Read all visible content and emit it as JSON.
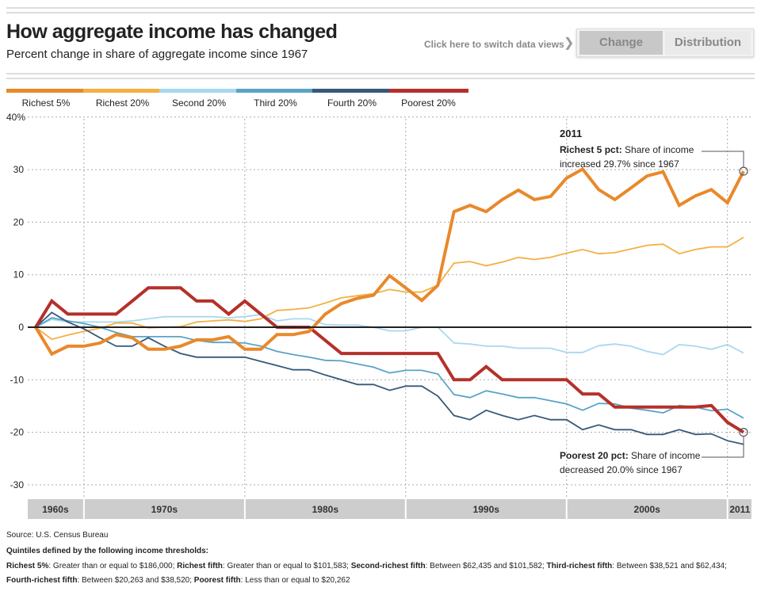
{
  "header": {
    "title": "How aggregate income has changed",
    "subtitle": "Percent change in share of aggregate income since 1967",
    "switch_hint": "Click here to switch data views",
    "buttons": [
      {
        "label": "Change",
        "active": true
      },
      {
        "label": "Distribution",
        "active": false
      }
    ]
  },
  "chart_data": {
    "type": "line",
    "title": "How aggregate income has changed",
    "subtitle": "Percent change in share of aggregate income since 1967",
    "ylim": [
      -33,
      40
    ],
    "yticks": [
      {
        "v": 40,
        "label": "40%"
      },
      {
        "v": 30,
        "label": "30"
      },
      {
        "v": 20,
        "label": "20"
      },
      {
        "v": 10,
        "label": "10"
      },
      {
        "v": 0,
        "label": "0"
      },
      {
        "v": -10,
        "label": "-10"
      },
      {
        "v": -20,
        "label": "-20"
      },
      {
        "v": -30,
        "label": "-30"
      }
    ],
    "grid": true,
    "legend_placement": "top",
    "x_start": 1967,
    "x_end": 2011,
    "decades": [
      {
        "label": "1960s",
        "from": 1967,
        "to": 1970
      },
      {
        "label": "1970s",
        "from": 1970,
        "to": 1980
      },
      {
        "label": "1980s",
        "from": 1980,
        "to": 1990
      },
      {
        "label": "1990s",
        "from": 1990,
        "to": 2000
      },
      {
        "label": "2000s",
        "from": 2000,
        "to": 2010
      },
      {
        "label": "2011",
        "from": 2010,
        "to": 2011
      }
    ],
    "series": [
      {
        "name": "Richest 5%",
        "color": "#e8892b",
        "width": 4,
        "values": [
          0,
          -5.1,
          -3.6,
          -3.6,
          -3,
          -1.4,
          -2,
          -4.2,
          -4.2,
          -3.6,
          -2.4,
          -2.4,
          -1.8,
          -4.2,
          -4.2,
          -1.4,
          -1.4,
          -0.8,
          2.5,
          4.5,
          5.5,
          6.1,
          9.8,
          7.5,
          5.1,
          8,
          22,
          23.2,
          22,
          24.3,
          26.1,
          24.3,
          24.9,
          28.4,
          30.1,
          26.2,
          24.3,
          26.5,
          28.8,
          29.6,
          23.2,
          25,
          26.2,
          23.7,
          29.7
        ]
      },
      {
        "name": "Richest 20%",
        "color": "#f4b043",
        "width": 1.8,
        "values": [
          0,
          -2.3,
          -1.5,
          -0.8,
          -0.2,
          0.8,
          0.8,
          -0.1,
          0,
          0.1,
          1,
          1.2,
          1.4,
          1.1,
          1.6,
          3.2,
          3.4,
          3.7,
          4.6,
          5.6,
          6,
          6.4,
          7.2,
          6.7,
          6.7,
          8,
          12.2,
          12.5,
          11.7,
          12.4,
          13.3,
          12.9,
          13.3,
          14.1,
          14.8,
          14,
          14.2,
          14.9,
          15.6,
          15.8,
          14,
          14.8,
          15.3,
          15.3,
          17.1
        ]
      },
      {
        "name": "Second 20%",
        "color": "#a8d8ef",
        "width": 1.8,
        "values": [
          0,
          1.5,
          1,
          1,
          1,
          1,
          1.2,
          1.6,
          2,
          2,
          2,
          2,
          1.8,
          2,
          2.4,
          1.2,
          1.6,
          1.6,
          0.5,
          0.4,
          0.4,
          0,
          -0.7,
          -0.7,
          0,
          0,
          -3,
          -3.2,
          -3.6,
          -3.6,
          -4,
          -4,
          -4,
          -4.8,
          -4.8,
          -3.5,
          -3.2,
          -3.6,
          -4.6,
          -5.2,
          -3.3,
          -3.6,
          -4.2,
          -3.3,
          -4.9
        ]
      },
      {
        "name": "Third 20%",
        "color": "#5ba3c7",
        "width": 1.8,
        "values": [
          0,
          1.8,
          1.2,
          0.7,
          0,
          -1,
          -1.8,
          -1.8,
          -1.8,
          -1.8,
          -2.5,
          -2.9,
          -2.9,
          -3,
          -3.6,
          -4.6,
          -5.2,
          -5.7,
          -6.3,
          -6.4,
          -7,
          -7.6,
          -8.7,
          -8.2,
          -8.2,
          -8.9,
          -12.8,
          -13.4,
          -12.1,
          -12.7,
          -13.4,
          -13.4,
          -14,
          -14.6,
          -15.8,
          -14.5,
          -14.6,
          -15.4,
          -15.8,
          -16.3,
          -14.9,
          -15.2,
          -15.9,
          -15.6,
          -17.3
        ]
      },
      {
        "name": "Fourth 20%",
        "color": "#36597a",
        "width": 1.8,
        "values": [
          0,
          2.8,
          1,
          -0.3,
          -2,
          -3.6,
          -3.6,
          -2,
          -3.6,
          -5,
          -5.7,
          -5.7,
          -5.7,
          -5.7,
          -6.5,
          -7.3,
          -8.1,
          -8.1,
          -9.1,
          -10,
          -10.9,
          -10.9,
          -12,
          -11.2,
          -11.2,
          -13.1,
          -16.8,
          -17.6,
          -15.8,
          -16.8,
          -17.6,
          -16.8,
          -17.6,
          -17.6,
          -19.5,
          -18.6,
          -19.5,
          -19.5,
          -20.4,
          -20.4,
          -19.5,
          -20.4,
          -20.3,
          -21.6,
          -22.3
        ]
      },
      {
        "name": "Poorest 20%",
        "color": "#b5302a",
        "width": 4,
        "values": [
          0,
          5,
          2.5,
          2.5,
          2.5,
          2.5,
          5,
          7.5,
          7.5,
          7.5,
          5,
          5,
          2.5,
          5,
          2.5,
          0,
          0,
          0,
          -2.5,
          -5,
          -5,
          -5,
          -5,
          -5,
          -5,
          -5,
          -10,
          -10,
          -7.5,
          -10,
          -10,
          -10,
          -10,
          -10,
          -12.7,
          -12.7,
          -15.2,
          -15.2,
          -15.2,
          -15.2,
          -15.2,
          -15.2,
          -14.9,
          -18.1,
          -20
        ]
      }
    ],
    "annotations": {
      "year": "2011",
      "top": {
        "bold": "Richest 5 pct:",
        "text1": " Share of income",
        "text2": "increased 29.7% since 1967",
        "value": 29.7
      },
      "bottom": {
        "bold": "Poorest 20 pct:",
        "text1": " Share of income",
        "text2": "decreased 20.0% since 1967",
        "value": -20.0
      }
    }
  },
  "footer": {
    "source": "Source: U.S. Census Bureau",
    "quintile_title": "Quintiles defined by the following income thresholds:",
    "quintiles": [
      {
        "label": "Richest 5%",
        "text": ": Greater than or equal to $186,000; "
      },
      {
        "label": "Richest fifth",
        "text": ": Greater than or equal to $101,583; "
      },
      {
        "label": "Second-richest fifth",
        "text": ": Between $62,435 and $101,582; "
      },
      {
        "label": "Third-richest fifth",
        "text": ": Between $38,521 and $62,434; "
      },
      {
        "label": "Fourth-richest fifth",
        "text": ": Between $20,263 and $38,520; "
      },
      {
        "label": "Poorest fifth",
        "text": ": Less than or equal to $20,262"
      }
    ]
  }
}
